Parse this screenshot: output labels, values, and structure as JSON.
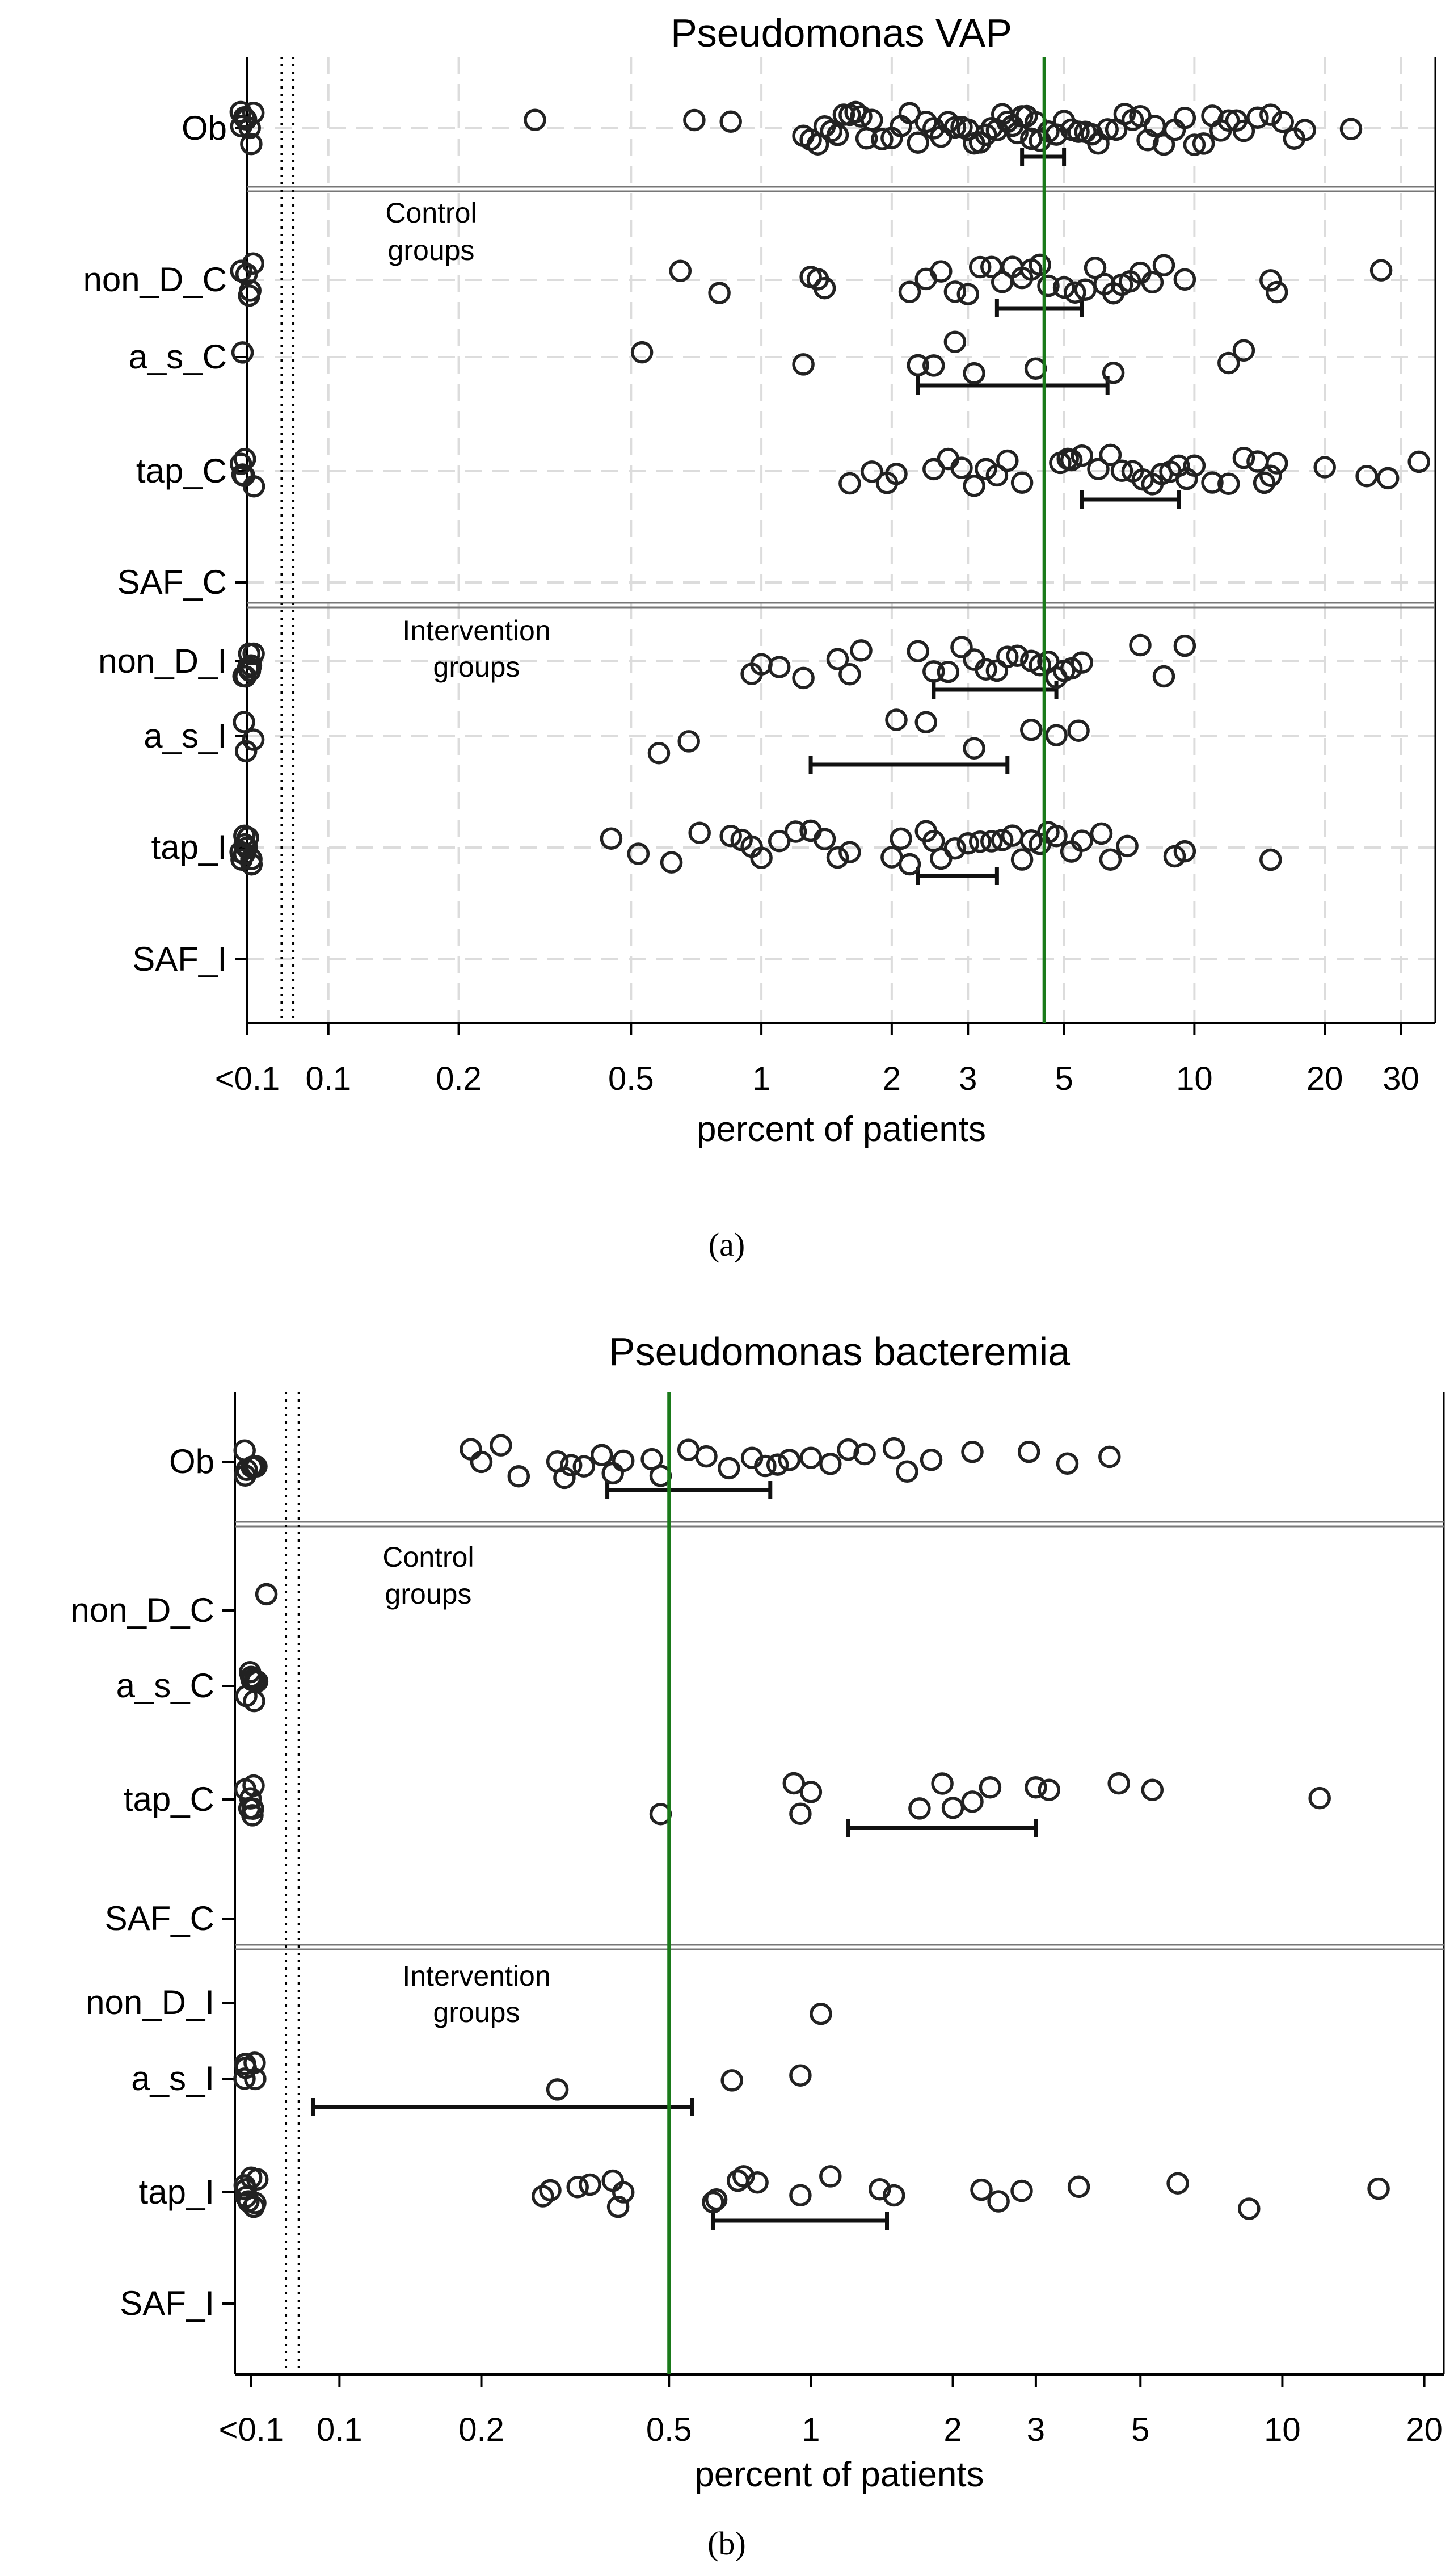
{
  "figure": {
    "caption_a": "(a)",
    "caption_b": "(b)"
  },
  "chart_data": [
    {
      "id": "a",
      "type": "scatter",
      "title": "Pseudomonas VAP",
      "xlabel": "percent of patients",
      "ylabel": "",
      "x_scale": "log",
      "xlim": [
        0.065,
        36
      ],
      "x_ticks": [
        {
          "label": "<0.1",
          "value": 0.065
        },
        {
          "label": "0.1",
          "value": 0.1
        },
        {
          "label": "0.2",
          "value": 0.2
        },
        {
          "label": "0.5",
          "value": 0.5
        },
        {
          "label": "1",
          "value": 1
        },
        {
          "label": "2",
          "value": 2
        },
        {
          "label": "3",
          "value": 3
        },
        {
          "label": "5",
          "value": 5
        },
        {
          "label": "10",
          "value": 10
        },
        {
          "label": "20",
          "value": 20
        },
        {
          "label": "30",
          "value": 30
        }
      ],
      "below_detection_value": 0.065,
      "dotted_lines": [
        0.078,
        0.083
      ],
      "reference_line": {
        "value": 4.5,
        "color": "#1a7a1a"
      },
      "rows": [
        {
          "label": "Ob",
          "y": 0,
          "ci": [
            4.0,
            5.0
          ],
          "values": [
            0.065,
            0.065,
            0.065,
            0.065,
            0.065,
            0.065,
            0.065,
            0.3,
            0.7,
            0.85,
            1.25,
            1.3,
            1.35,
            1.4,
            1.45,
            1.5,
            1.55,
            1.6,
            1.65,
            1.7,
            1.75,
            1.8,
            1.9,
            2.0,
            2.1,
            2.2,
            2.3,
            2.4,
            2.5,
            2.6,
            2.7,
            2.8,
            2.9,
            3.0,
            3.1,
            3.2,
            3.3,
            3.4,
            3.5,
            3.6,
            3.7,
            3.8,
            3.9,
            4.0,
            4.1,
            4.2,
            4.3,
            4.4,
            4.6,
            4.8,
            5.0,
            5.2,
            5.4,
            5.6,
            5.8,
            6.0,
            6.3,
            6.6,
            6.9,
            7.2,
            7.5,
            7.8,
            8.1,
            8.5,
            9.0,
            9.5,
            10.0,
            10.5,
            11.0,
            11.5,
            12.0,
            12.5,
            13.0,
            14.0,
            15.0,
            16.0,
            17.0,
            18.0,
            23.0
          ]
        },
        {
          "label": "non_D_C",
          "y": 1,
          "ci": [
            3.5,
            5.5
          ],
          "values": [
            0.065,
            0.065,
            0.065,
            0.065,
            0.065,
            0.65,
            0.8,
            1.3,
            1.35,
            1.4,
            2.2,
            2.4,
            2.6,
            2.8,
            3.0,
            3.2,
            3.4,
            3.6,
            3.8,
            4.0,
            4.2,
            4.4,
            4.6,
            5.0,
            5.3,
            5.6,
            5.9,
            6.2,
            6.5,
            6.8,
            7.1,
            7.5,
            8.0,
            8.5,
            9.5,
            15.0,
            15.5,
            27.0
          ]
        },
        {
          "label": "a_s_C",
          "y": 2,
          "ci": [
            2.3,
            6.3
          ],
          "values": [
            0.065,
            0.53,
            1.25,
            2.3,
            2.5,
            2.8,
            3.1,
            4.3,
            6.5,
            12.0,
            13.0
          ]
        },
        {
          "label": "tap_C",
          "y": 3,
          "ci": [
            5.5,
            9.2
          ],
          "values": [
            0.065,
            0.065,
            0.065,
            0.065,
            0.065,
            1.6,
            1.8,
            1.95,
            2.05,
            2.5,
            2.7,
            2.9,
            3.1,
            3.3,
            3.5,
            3.7,
            4.0,
            4.9,
            5.1,
            5.2,
            5.5,
            6.0,
            6.4,
            6.8,
            7.2,
            7.6,
            8.0,
            8.4,
            8.8,
            9.2,
            9.6,
            10.0,
            11.0,
            12.0,
            13.0,
            14.0,
            14.5,
            15.0,
            15.5,
            20.0,
            25.0,
            28.0,
            33.0
          ]
        },
        {
          "label": "SAF_C",
          "y": 4,
          "ci": null,
          "values": []
        },
        {
          "label": "non_D_I",
          "y": 5,
          "ci": [
            2.5,
            4.8
          ],
          "values": [
            0.065,
            0.065,
            0.065,
            0.065,
            0.065,
            0.065,
            0.065,
            0.95,
            1.0,
            1.1,
            1.25,
            1.5,
            1.6,
            1.7,
            2.3,
            2.5,
            2.7,
            2.9,
            3.1,
            3.3,
            3.5,
            3.7,
            3.9,
            4.2,
            4.4,
            4.6,
            4.8,
            5.0,
            5.2,
            5.5,
            7.5,
            8.5,
            9.5
          ]
        },
        {
          "label": "a_s_I",
          "y": 6,
          "ci": [
            1.3,
            3.7
          ],
          "values": [
            0.065,
            0.065,
            0.065,
            0.58,
            0.68,
            2.05,
            2.4,
            3.1,
            4.2,
            4.8,
            5.4
          ]
        },
        {
          "label": "tap_I",
          "y": 7,
          "ci": [
            2.3,
            3.5
          ],
          "values": [
            0.065,
            0.065,
            0.065,
            0.065,
            0.065,
            0.065,
            0.065,
            0.065,
            0.065,
            0.45,
            0.52,
            0.62,
            0.72,
            0.85,
            0.9,
            0.95,
            1.0,
            1.1,
            1.2,
            1.3,
            1.4,
            1.5,
            1.6,
            2.0,
            2.1,
            2.2,
            2.4,
            2.5,
            2.6,
            2.8,
            3.0,
            3.2,
            3.4,
            3.6,
            3.8,
            4.0,
            4.2,
            4.4,
            4.6,
            4.8,
            5.2,
            5.5,
            6.1,
            6.4,
            7.0,
            9.0,
            9.5,
            15.0
          ]
        },
        {
          "label": "SAF_I",
          "y": 8,
          "ci": null,
          "values": []
        }
      ],
      "separators_after": [
        "Ob",
        "SAF_C"
      ],
      "group_labels": [
        {
          "lines": [
            "Control",
            "groups"
          ],
          "after_row": "Ob"
        },
        {
          "lines": [
            "Intervention",
            "groups"
          ],
          "after_row": "SAF_C"
        }
      ],
      "grid": true,
      "legend": "none"
    },
    {
      "id": "b",
      "type": "scatter",
      "title": "Pseudomonas bacteremia",
      "xlabel": "percent of patients",
      "ylabel": "",
      "x_scale": "log",
      "xlim": [
        0.06,
        22
      ],
      "x_ticks": [
        {
          "label": "<0.1",
          "value": 0.065
        },
        {
          "label": "0.1",
          "value": 0.1
        },
        {
          "label": "0.2",
          "value": 0.2
        },
        {
          "label": "0.5",
          "value": 0.5
        },
        {
          "label": "1",
          "value": 1
        },
        {
          "label": "2",
          "value": 2
        },
        {
          "label": "3",
          "value": 3
        },
        {
          "label": "5",
          "value": 5
        },
        {
          "label": "10",
          "value": 10
        },
        {
          "label": "20",
          "value": 20
        }
      ],
      "below_detection_value": 0.065,
      "dotted_lines": [
        0.077,
        0.082
      ],
      "reference_line": {
        "value": 0.5,
        "color": "#1a7a1a"
      },
      "rows": [
        {
          "label": "Ob",
          "y": 0,
          "ci": [
            0.37,
            0.82
          ],
          "values": [
            0.065,
            0.065,
            0.065,
            0.065,
            0.065,
            0.065,
            0.19,
            0.2,
            0.22,
            0.24,
            0.29,
            0.3,
            0.31,
            0.33,
            0.36,
            0.38,
            0.4,
            0.46,
            0.48,
            0.55,
            0.6,
            0.67,
            0.75,
            0.8,
            0.85,
            0.9,
            1.0,
            1.1,
            1.2,
            1.3,
            1.5,
            1.6,
            1.8,
            2.2,
            2.9,
            3.5,
            4.3
          ]
        },
        {
          "label": "non_D_C",
          "y": 1,
          "ci": null,
          "values": [
            0.07
          ]
        },
        {
          "label": "a_s_C",
          "y": 2,
          "ci": null,
          "values": [
            0.065,
            0.065,
            0.065,
            0.065,
            0.065,
            0.065,
            0.065
          ]
        },
        {
          "label": "tap_C",
          "y": 3,
          "ci": [
            1.2,
            3.0
          ],
          "values": [
            0.065,
            0.065,
            0.065,
            0.065,
            0.065,
            0.065,
            0.48,
            0.92,
            0.95,
            1.0,
            1.7,
            1.9,
            2.0,
            2.2,
            2.4,
            3.0,
            3.2,
            4.5,
            5.3,
            12.0
          ]
        },
        {
          "label": "SAF_C",
          "y": 4,
          "ci": null,
          "values": []
        },
        {
          "label": "non_D_I",
          "y": 5,
          "ci": null,
          "values": [
            1.05
          ]
        },
        {
          "label": "a_s_I",
          "y": 6,
          "ci": [
            0.088,
            0.56
          ],
          "values": [
            0.065,
            0.065,
            0.065,
            0.065,
            0.065,
            0.29,
            0.68,
            0.95
          ]
        },
        {
          "label": "tap_I",
          "y": 7,
          "ci": [
            0.62,
            1.45
          ],
          "values": [
            0.065,
            0.065,
            0.065,
            0.065,
            0.065,
            0.065,
            0.065,
            0.065,
            0.27,
            0.28,
            0.32,
            0.34,
            0.38,
            0.39,
            0.4,
            0.62,
            0.63,
            0.7,
            0.72,
            0.77,
            0.95,
            1.1,
            1.4,
            1.5,
            2.3,
            2.5,
            2.8,
            3.7,
            6.0,
            8.5,
            16.0
          ]
        },
        {
          "label": "SAF_I",
          "y": 8,
          "ci": null,
          "values": []
        }
      ],
      "separators_after": [
        "Ob",
        "SAF_C"
      ],
      "group_labels": [
        {
          "lines": [
            "Control",
            "groups"
          ],
          "after_row": "Ob"
        },
        {
          "lines": [
            "Intervention",
            "groups"
          ],
          "after_row": "SAF_C"
        }
      ],
      "grid": false,
      "legend": "none"
    }
  ]
}
